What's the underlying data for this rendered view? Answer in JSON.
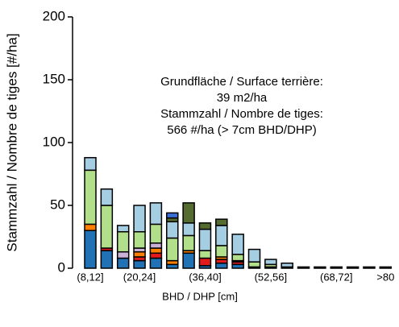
{
  "chart_data": {
    "type": "bar",
    "stacked": true,
    "annotation": [
      "Grundfläche / Surface terrière:",
      "39 m2/ha",
      "Stammzahl / Nombre de tiges:",
      "566 #/ha (> 7cm BHD/DHP)"
    ],
    "x_label": "BHD / DHP [cm]",
    "y_label": "Stammzahl / Nombre de tiges [#/ha]",
    "categories": [
      "(8,12]",
      null,
      null,
      "(20,24]",
      null,
      null,
      null,
      "(36,40]",
      null,
      null,
      null,
      "(52,56]",
      null,
      null,
      null,
      "(68,72]",
      null,
      null,
      ">80"
    ],
    "ylim": [
      0,
      200
    ],
    "yticks": [
      0,
      50,
      100,
      150,
      200
    ],
    "series": [
      {
        "color": "#2171b5",
        "values": [
          30,
          14,
          8,
          6,
          8,
          3,
          12,
          2,
          4,
          3,
          1,
          1,
          1,
          1,
          1,
          1,
          1,
          1,
          1
        ]
      },
      {
        "color": "#e31a1c",
        "values": [
          0,
          2,
          0,
          3,
          4,
          0,
          0,
          6,
          3,
          2,
          0,
          0,
          0,
          0,
          0,
          0,
          0,
          0,
          0
        ]
      },
      {
        "color": "#ff7f00",
        "values": [
          5,
          0,
          0,
          4,
          4,
          3,
          2,
          0,
          2,
          1,
          0,
          0,
          0,
          0,
          0,
          0,
          0,
          0,
          0
        ]
      },
      {
        "color": "#cab2d6",
        "values": [
          0,
          0,
          5,
          3,
          4,
          0,
          0,
          0,
          0,
          0,
          0,
          0,
          0,
          0,
          0,
          0,
          0,
          0,
          0
        ]
      },
      {
        "color": "#b2df8a",
        "values": [
          43,
          34,
          16,
          13,
          15,
          18,
          12,
          6,
          9,
          5,
          4,
          2,
          0,
          0,
          0,
          0,
          0,
          0,
          0
        ]
      },
      {
        "color": "#a6cee3",
        "values": [
          10,
          13,
          5,
          21,
          17,
          13,
          10,
          17,
          16,
          16,
          10,
          4,
          3,
          0,
          0,
          0,
          0,
          0,
          0
        ]
      },
      {
        "color": "#556b2f",
        "values": [
          0,
          0,
          0,
          0,
          0,
          3,
          16,
          5,
          5,
          0,
          0,
          0,
          0,
          0,
          0,
          0,
          0,
          0,
          0
        ]
      },
      {
        "color": "#3a6fd8",
        "values": [
          0,
          0,
          0,
          0,
          0,
          4,
          0,
          0,
          0,
          0,
          0,
          0,
          0,
          0,
          0,
          0,
          0,
          0,
          0
        ]
      }
    ]
  }
}
